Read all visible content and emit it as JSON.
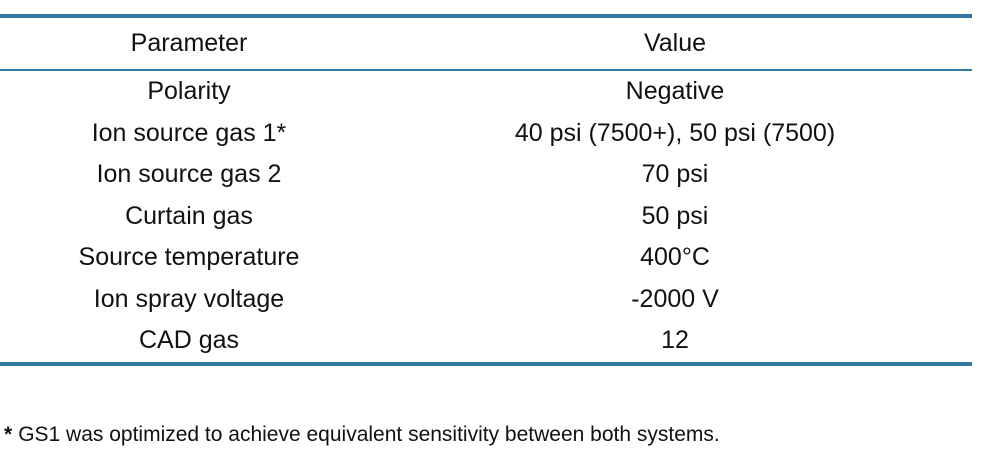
{
  "table": {
    "header": [
      "Parameter",
      "Value"
    ],
    "rows": [
      [
        "Polarity",
        "Negative"
      ],
      [
        "Ion source gas 1*",
        "40 psi (7500+), 50 psi (7500)"
      ],
      [
        "Ion source gas 2",
        "70 psi"
      ],
      [
        "Curtain gas",
        "50 psi"
      ],
      [
        "Source temperature",
        "400°C"
      ],
      [
        "Ion spray voltage",
        "-2000 V"
      ],
      [
        "CAD gas",
        "12"
      ]
    ]
  },
  "footnote": {
    "marker": "*",
    "text": "GS1 was optimized to achieve equivalent sensitivity between both systems."
  }
}
